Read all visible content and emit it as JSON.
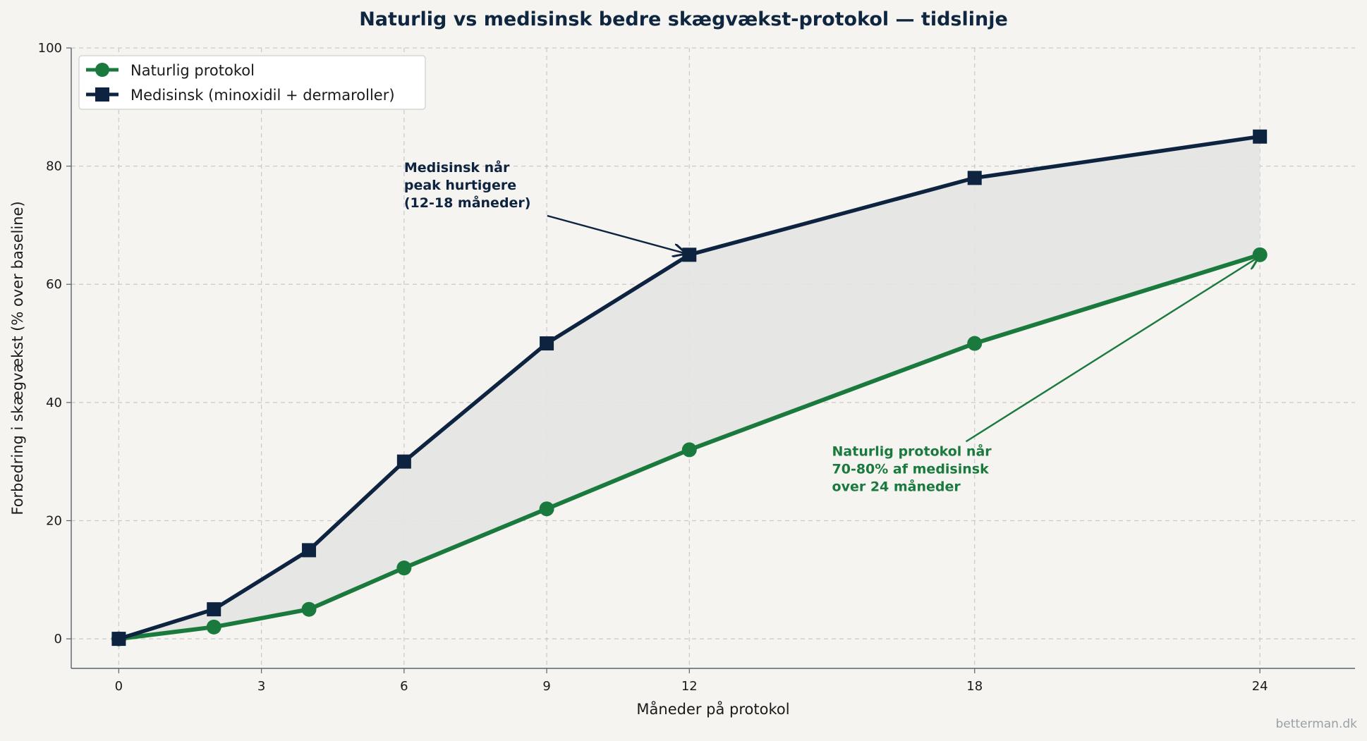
{
  "chart_data": {
    "type": "line",
    "title": "Naturlig vs medisinsk bedre skægvækst-protokol — tidslinje",
    "xlabel": "Måneder på protokol",
    "ylabel": "Forbedring i skægvækst (% over baseline)",
    "xlim": [
      -1,
      26
    ],
    "ylim": [
      -5,
      100
    ],
    "x_ticks": [
      0,
      3,
      6,
      9,
      12,
      18,
      24
    ],
    "y_ticks": [
      0,
      20,
      40,
      60,
      80,
      100
    ],
    "grid": true,
    "legend_position": "top-left",
    "series": [
      {
        "name": "Naturlig protokol",
        "color": "#1a7a3e",
        "marker": "circle",
        "x": [
          0,
          2,
          4,
          6,
          9,
          12,
          18,
          24
        ],
        "values": [
          0,
          2,
          5,
          12,
          22,
          32,
          50,
          65
        ]
      },
      {
        "name": "Medisinsk (minoxidil + dermaroller)",
        "color": "#0d2340",
        "marker": "square",
        "x": [
          0,
          2,
          4,
          6,
          9,
          12,
          18,
          24
        ],
        "values": [
          0,
          5,
          15,
          30,
          50,
          65,
          78,
          85
        ]
      }
    ],
    "fill_between": {
      "color": "#e4e4e2"
    },
    "annotations": [
      {
        "lines": [
          "Medisinsk når",
          "peak hurtigere",
          "(12-18 måneder)"
        ],
        "color": "#0d2340",
        "text_at": [
          6,
          79
        ],
        "arrow_to": [
          12,
          65
        ]
      },
      {
        "lines": [
          "Naturlig protokol når",
          "70-80% af medisinsk",
          "over 24 måneder"
        ],
        "color": "#1a7a3e",
        "text_at": [
          15,
          31
        ],
        "arrow_to": [
          24,
          65
        ]
      }
    ]
  },
  "watermark": "betterman.dk"
}
